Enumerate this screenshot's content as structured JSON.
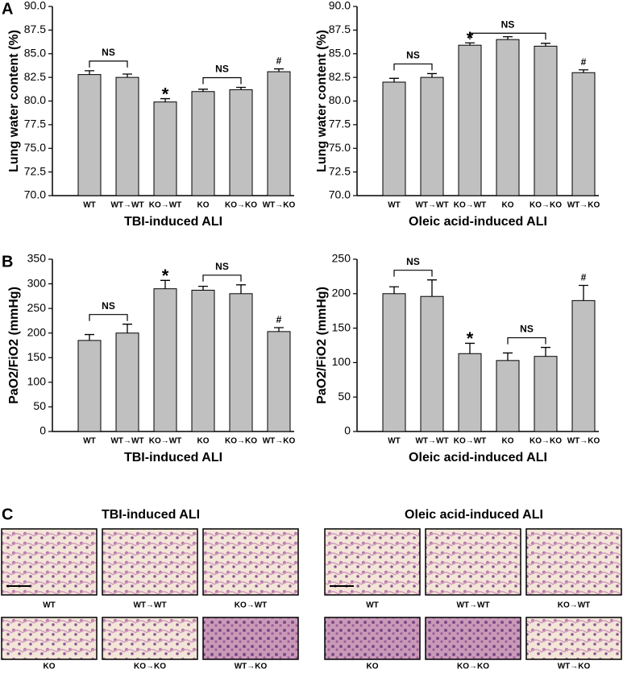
{
  "panels": [
    "A",
    "B",
    "C"
  ],
  "chart_data": [
    {
      "type": "bar",
      "ylabel": "Lung  water content (%)",
      "xlabel": "TBI-induced ALI",
      "categories": [
        "WT",
        "WT→WT",
        "KO→WT",
        "KO",
        "KO→KO",
        "WT→KO"
      ],
      "values": [
        82.8,
        82.5,
        79.9,
        81.0,
        81.2,
        83.1
      ],
      "errors": [
        0.4,
        0.35,
        0.35,
        0.25,
        0.25,
        0.3
      ],
      "color": "#c0c0c0",
      "ylim": [
        70,
        90
      ],
      "yticks": [
        {
          "value": 70,
          "label": "70.0"
        },
        {
          "value": 72.5,
          "label": "72.5"
        },
        {
          "value": 75,
          "label": "75.0"
        },
        {
          "value": 77.5,
          "label": "77.5"
        },
        {
          "value": 80,
          "label": "80.0"
        },
        {
          "value": 82.5,
          "label": "82.5"
        },
        {
          "value": 85,
          "label": "85.0"
        },
        {
          "value": 87.5,
          "label": "87.5"
        },
        {
          "value": 90,
          "label": "90.0"
        }
      ],
      "annotations": [
        "NS",
        "*",
        "NS",
        "#"
      ]
    },
    {
      "type": "bar",
      "ylabel": "Lung  water content (%)",
      "xlabel": "Oleic acid-induced ALI",
      "categories": [
        "WT",
        "WT→WT",
        "KO→WT",
        "KO",
        "KO→KO",
        "WT→KO"
      ],
      "values": [
        82.0,
        82.5,
        85.9,
        86.5,
        85.8,
        83.0
      ],
      "errors": [
        0.4,
        0.4,
        0.25,
        0.3,
        0.3,
        0.3
      ],
      "color": "#c0c0c0",
      "ylim": [
        70,
        90
      ],
      "yticks": [
        {
          "value": 70,
          "label": "70.0"
        },
        {
          "value": 72.5,
          "label": "72.5"
        },
        {
          "value": 75,
          "label": "75.0"
        },
        {
          "value": 77.5,
          "label": "77.5"
        },
        {
          "value": 80,
          "label": "80.0"
        },
        {
          "value": 82.5,
          "label": "82.5"
        },
        {
          "value": 85,
          "label": "85.0"
        },
        {
          "value": 87.5,
          "label": "87.5"
        },
        {
          "value": 90,
          "label": "90.0"
        }
      ],
      "annotations": [
        "NS",
        "*",
        "NS",
        "#"
      ]
    },
    {
      "type": "bar",
      "ylabel": "PaO2/FiO2 (mmHg)",
      "xlabel": "TBI-induced ALI",
      "categories": [
        "WT",
        "WT→WT",
        "KO→WT",
        "KO",
        "KO→KO",
        "WT→KO"
      ],
      "values": [
        185,
        200,
        290,
        287,
        280,
        203
      ],
      "errors": [
        12,
        18,
        17,
        8,
        18,
        8
      ],
      "color": "#c0c0c0",
      "ylim": [
        0,
        350
      ],
      "yticks": [
        0,
        50,
        100,
        150,
        200,
        250,
        300,
        350
      ],
      "annotations": [
        "NS",
        "*",
        "NS",
        "#"
      ]
    },
    {
      "type": "bar",
      "ylabel": "PaO2/FiO2 (mmHg)",
      "xlabel": "Oleic acid-induced ALI",
      "categories": [
        "WT",
        "WT→WT",
        "KO→WT",
        "KO",
        "KO→KO",
        "WT→KO"
      ],
      "values": [
        200,
        196,
        113,
        103,
        109,
        190
      ],
      "errors": [
        10,
        24,
        15,
        11,
        13,
        22
      ],
      "color": "#c0c0c0",
      "ylim": [
        0,
        250
      ],
      "yticks": [
        0,
        50,
        100,
        150,
        200,
        250
      ],
      "annotations": [
        "NS",
        "*",
        "NS",
        "#"
      ]
    }
  ],
  "histology": [
    {
      "title": "TBI-induced ALI",
      "captions": [
        "WT",
        "WT→WT",
        "KO→WT",
        "KO",
        "KO→KO",
        "WT→KO"
      ]
    },
    {
      "title": "Oleic acid-induced ALI",
      "captions": [
        "WT",
        "WT→WT",
        "KO→WT",
        "KO",
        "KO→KO",
        "WT→KO"
      ]
    }
  ]
}
